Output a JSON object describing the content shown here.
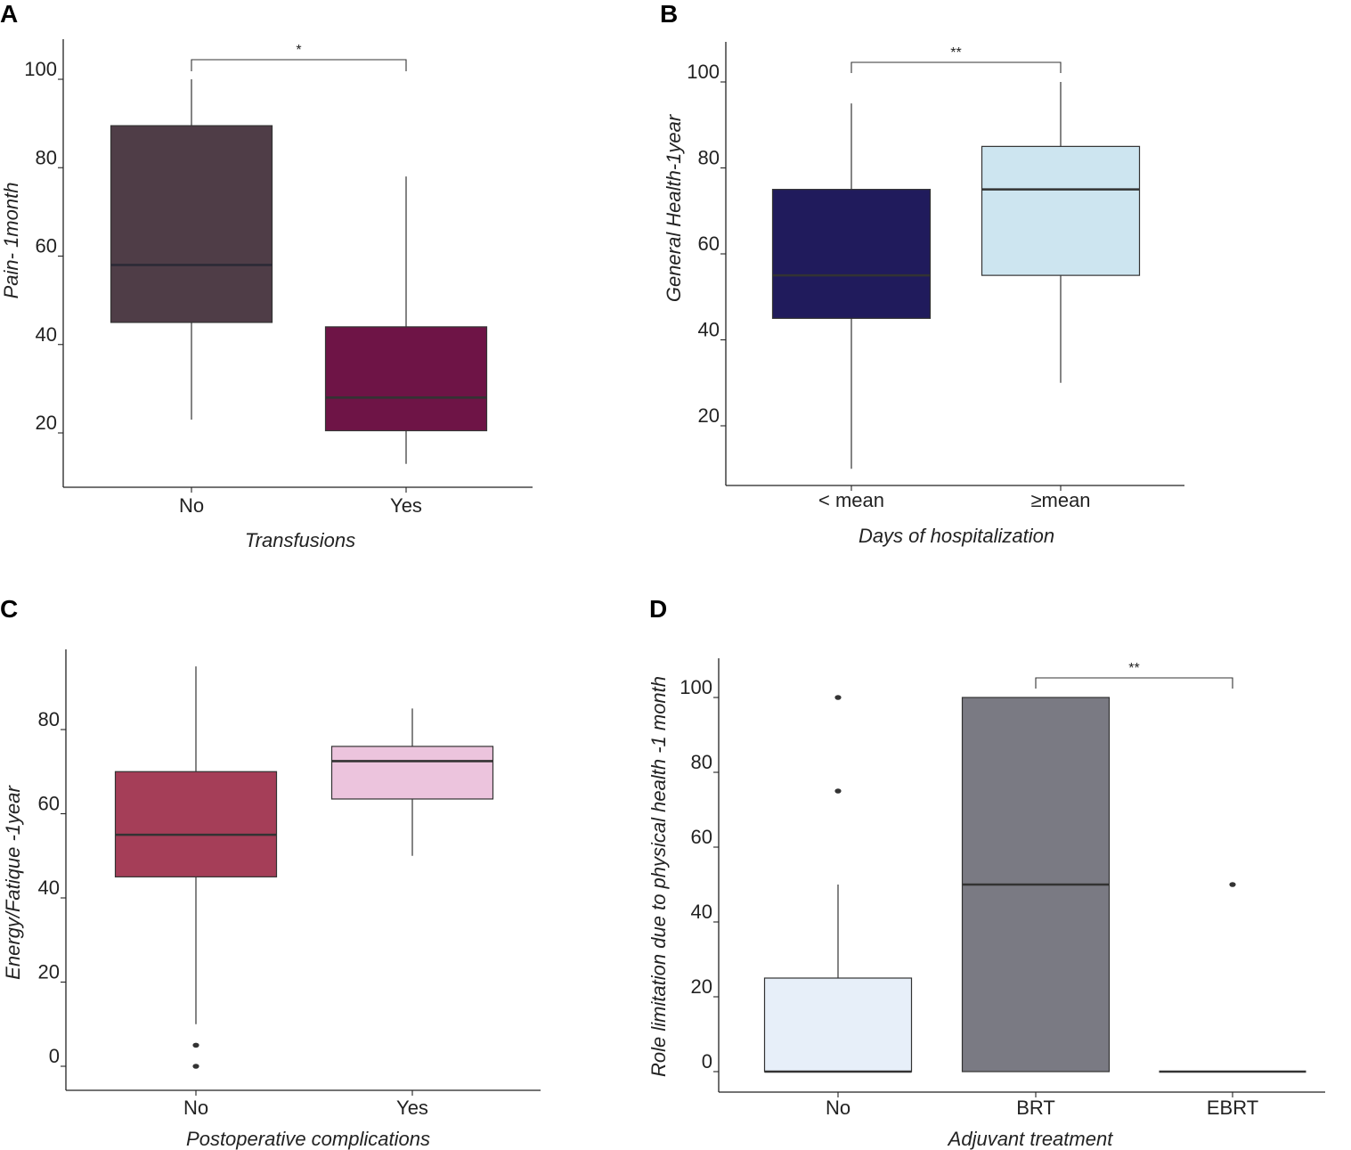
{
  "chart_data": [
    {
      "panel": "A",
      "type": "box",
      "title": "",
      "xlabel": "Transfusions",
      "ylabel": "Pain- 1month",
      "ylim": [
        11,
        109
      ],
      "yticks": [
        "20",
        "40",
        "60",
        "80",
        "100"
      ],
      "grid": false,
      "categories": [
        "No",
        "Yes"
      ],
      "boxes": [
        {
          "category": "No",
          "whisker_low": 23,
          "q1": 45,
          "median": 58,
          "q3": 89.5,
          "whisker_high": 100,
          "outliers": [],
          "color": "#4f3d47",
          "median_color": "#2c2a36"
        },
        {
          "category": "Yes",
          "whisker_low": 13,
          "q1": 20.5,
          "median": 28,
          "q3": 44,
          "whisker_high": 78,
          "outliers": [],
          "color": "#6e1446",
          "median_color": "#333333"
        }
      ],
      "significance": [
        {
          "from": "No",
          "to": "Yes",
          "label": "*"
        }
      ]
    },
    {
      "panel": "B",
      "type": "box",
      "title": "",
      "xlabel": "Days of hospitalization",
      "ylabel": "General Health-1year",
      "ylim": [
        4,
        110
      ],
      "yticks": [
        "20",
        "40",
        "60",
        "80",
        "100"
      ],
      "grid": false,
      "categories": [
        "< mean",
        "≥mean"
      ],
      "boxes": [
        {
          "category": "< mean",
          "whisker_low": 10,
          "q1": 45,
          "median": 55,
          "q3": 75,
          "whisker_high": 95,
          "outliers": [],
          "color": "#201b5c",
          "median_color": "#333333"
        },
        {
          "category": "≥mean",
          "whisker_low": 30,
          "q1": 55,
          "median": 75,
          "q3": 85,
          "whisker_high": 100,
          "outliers": [],
          "color": "#cde5f0",
          "median_color": "#333333"
        }
      ],
      "significance": [
        {
          "from": "< mean",
          "to": "≥mean",
          "label": "**"
        }
      ]
    },
    {
      "panel": "C",
      "type": "box",
      "title": "",
      "xlabel": "Postoperative complications",
      "ylabel": "Energy/Fatique -1year",
      "ylim": [
        -5,
        100
      ],
      "yticks": [
        "0",
        "20",
        "40",
        "60",
        "80"
      ],
      "grid": false,
      "categories": [
        "No",
        "Yes"
      ],
      "boxes": [
        {
          "category": "No",
          "whisker_low": 10,
          "q1": 45,
          "median": 55,
          "q3": 70,
          "whisker_high": 95,
          "outliers": [
            5,
            0
          ],
          "color": "#a53e58",
          "median_color": "#333333"
        },
        {
          "category": "Yes",
          "whisker_low": 50,
          "q1": 63.5,
          "median": 72.5,
          "q3": 76,
          "whisker_high": 85,
          "outliers": [],
          "color": "#ecc4dd",
          "median_color": "#333333"
        }
      ],
      "significance": []
    },
    {
      "panel": "D",
      "type": "box",
      "title": "",
      "xlabel": "Adjuvant treatment",
      "ylabel": "Role limitation due to physical health -1 month",
      "ylim": [
        -5,
        110
      ],
      "yticks": [
        "0",
        "20",
        "40",
        "60",
        "80",
        "100"
      ],
      "grid": false,
      "categories": [
        "No",
        "BRT",
        "EBRT"
      ],
      "boxes": [
        {
          "category": "No",
          "whisker_low": 0,
          "q1": 0,
          "median": 0,
          "q3": 25,
          "whisker_high": 50,
          "outliers": [
            75,
            100
          ],
          "color": "#e7eff9",
          "median_color": "#333333"
        },
        {
          "category": "BRT",
          "whisker_low": 0,
          "q1": 0,
          "median": 50,
          "q3": 100,
          "whisker_high": 100,
          "outliers": [],
          "color": "#7a7a83",
          "median_color": "#333333"
        },
        {
          "category": "EBRT",
          "whisker_low": 0,
          "q1": 0,
          "median": 0,
          "q3": 0,
          "whisker_high": 0,
          "outliers": [
            50
          ],
          "color": "#ffffff",
          "median_color": "#333333"
        }
      ],
      "significance": [
        {
          "from": "BRT",
          "to": "EBRT",
          "label": "**"
        }
      ]
    }
  ]
}
